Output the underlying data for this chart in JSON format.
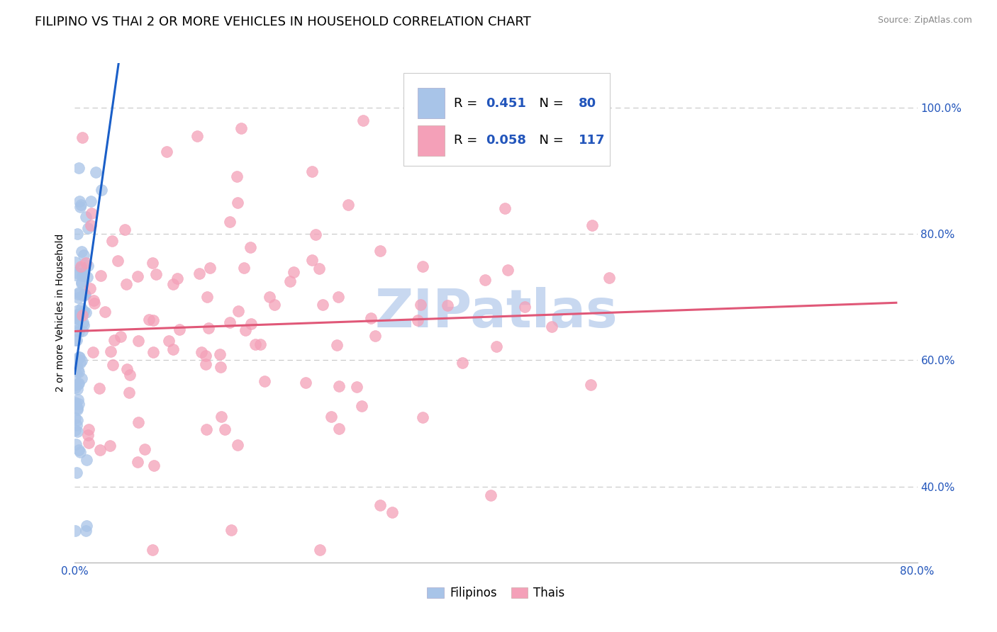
{
  "title": "FILIPINO VS THAI 2 OR MORE VEHICLES IN HOUSEHOLD CORRELATION CHART",
  "source": "Source: ZipAtlas.com",
  "ylabel": "2 or more Vehicles in Household",
  "xlabel_ticks": [
    "0.0%",
    "",
    "",
    "",
    "",
    "",
    "",
    "",
    "",
    "80.0%"
  ],
  "ylabel_ticks": [
    "40.0%",
    "60.0%",
    "80.0%",
    "100.0%"
  ],
  "xmin": 0.0,
  "xmax": 0.8,
  "ymin": 0.28,
  "ymax": 1.07,
  "r_filipino": 0.451,
  "n_filipino": 80,
  "r_thai": 0.058,
  "n_thai": 117,
  "filipino_color": "#a8c4e8",
  "thai_color": "#f4a0b8",
  "filipino_line_color": "#1a5fc8",
  "thai_line_color": "#e05878",
  "watermark": "ZIPatlas",
  "watermark_color": "#c8d8f0",
  "title_fontsize": 13,
  "axis_label_fontsize": 10,
  "tick_fontsize": 11,
  "source_fontsize": 9,
  "legend_fontsize": 13,
  "legend_labels": [
    "Filipinos",
    "Thais"
  ],
  "blue_text_color": "#2255bb",
  "pink_text_color": "#e05878"
}
